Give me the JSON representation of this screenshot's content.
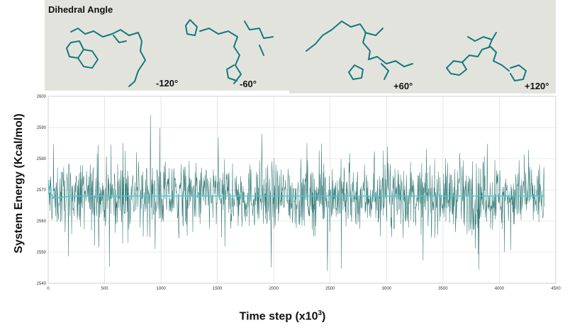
{
  "inset": {
    "title": "Dihedral Angle",
    "angles": [
      "-120°",
      "-60°",
      "+60°",
      "+120°"
    ]
  },
  "colors": {
    "trace": "#1f6b68",
    "average": "#33d3df",
    "grid": "#d6d6d6",
    "molecule": "#137a7a"
  },
  "chart_data": {
    "type": "line",
    "xlabel_prefix": "Time step (x10",
    "xlabel_sup": "3",
    "xlabel_suffix": ")",
    "ylabel": "System Energy (Kcal/mol)",
    "xlim": [
      0,
      4500
    ],
    "ylim": [
      2540,
      2600
    ],
    "xticks": [
      0,
      500,
      1000,
      1500,
      2000,
      2500,
      3000,
      3500,
      4000,
      4500
    ],
    "yticks": [
      2540,
      2550,
      2560,
      2570,
      2580,
      2590,
      2600
    ],
    "grid": true,
    "series": [
      {
        "kind": "raw trace",
        "x_range": [
          0,
          4400
        ],
        "mean": 2568,
        "typical_range": [
          2556,
          2580
        ],
        "extremes": [
          2544,
          2594
        ]
      },
      {
        "kind": "running average",
        "x": [
          0,
          20,
          50,
          100,
          200,
          500,
          1000,
          2000,
          3000,
          4000,
          4400
        ],
        "y": [
          2572,
          2569,
          2567.5,
          2567.5,
          2568,
          2568,
          2568,
          2568,
          2568,
          2568,
          2568
        ]
      }
    ]
  }
}
